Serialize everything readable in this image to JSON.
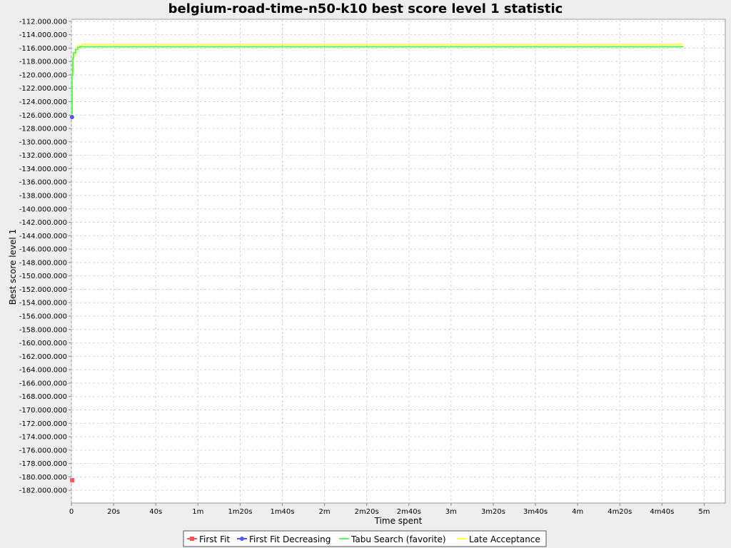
{
  "chart_data": {
    "type": "line",
    "title": "belgium-road-time-n50-k10 best score level 1 statistic",
    "xlabel": "Time spent",
    "ylabel": "Best score level 1",
    "xlim": [
      0,
      310
    ],
    "ylim": [
      -183900000,
      -111700000
    ],
    "x_ticks": [
      0,
      20,
      40,
      60,
      80,
      100,
      120,
      140,
      160,
      180,
      200,
      220,
      240,
      260,
      280,
      300
    ],
    "x_tick_labels": [
      "0",
      "20s",
      "40s",
      "1m",
      "1m20s",
      "1m40s",
      "2m",
      "2m20s",
      "2m40s",
      "3m",
      "3m20s",
      "3m40s",
      "4m",
      "4m20s",
      "4m40s",
      "5m"
    ],
    "y_ticks": [
      -112000000,
      -114000000,
      -116000000,
      -118000000,
      -120000000,
      -122000000,
      -124000000,
      -126000000,
      -128000000,
      -130000000,
      -132000000,
      -134000000,
      -136000000,
      -138000000,
      -140000000,
      -142000000,
      -144000000,
      -146000000,
      -148000000,
      -150000000,
      -152000000,
      -154000000,
      -156000000,
      -158000000,
      -160000000,
      -162000000,
      -164000000,
      -166000000,
      -168000000,
      -170000000,
      -172000000,
      -174000000,
      -176000000,
      -178000000,
      -180000000,
      -182000000
    ],
    "y_tick_labels": [
      "-112.000.000",
      "-114.000.000",
      "-116.000.000",
      "-118.000.000",
      "-120.000.000",
      "-122.000.000",
      "-124.000.000",
      "-126.000.000",
      "-128.000.000",
      "-130.000.000",
      "-132.000.000",
      "-134.000.000",
      "-136.000.000",
      "-138.000.000",
      "-140.000.000",
      "-142.000.000",
      "-144.000.000",
      "-146.000.000",
      "-148.000.000",
      "-150.000.000",
      "-152.000.000",
      "-154.000.000",
      "-156.000.000",
      "-158.000.000",
      "-160.000.000",
      "-162.000.000",
      "-164.000.000",
      "-166.000.000",
      "-168.000.000",
      "-170.000.000",
      "-172.000.000",
      "-174.000.000",
      "-176.000.000",
      "-178.000.000",
      "-180.000.000",
      "-182.000.000"
    ],
    "grid": true,
    "legend_position": "bottom",
    "series": [
      {
        "name": "First Fit",
        "color": "#ff5555",
        "marker": "square",
        "points": [
          [
            0.4,
            -180500000
          ]
        ]
      },
      {
        "name": "First Fit Decreasing",
        "color": "#5555ff",
        "marker": "circle",
        "points": [
          [
            0.3,
            -126300000
          ]
        ]
      },
      {
        "name": "Tabu Search (favorite)",
        "color": "#55ff55",
        "marker": "none",
        "points": [
          [
            0,
            -125800000
          ],
          [
            0.3,
            -120000000
          ],
          [
            0.6,
            -117500000
          ],
          [
            1,
            -116700000
          ],
          [
            2,
            -116200000
          ],
          [
            3,
            -115900000
          ],
          [
            4,
            -115800000
          ],
          [
            10,
            -115800000
          ],
          [
            290,
            -115800000
          ]
        ]
      },
      {
        "name": "Late Acceptance",
        "color": "#ffff55",
        "marker": "none",
        "points": [
          [
            0,
            -125500000
          ],
          [
            0.4,
            -119500000
          ],
          [
            1,
            -117000000
          ],
          [
            2,
            -116000000
          ],
          [
            3,
            -115600000
          ],
          [
            5,
            -115400000
          ],
          [
            10,
            -115400000
          ],
          [
            290,
            -115400000
          ]
        ]
      }
    ]
  },
  "colors": {
    "page_background": "#eeeeee",
    "plot_background": "#ffffff",
    "gridline": "#d6d6d6"
  }
}
